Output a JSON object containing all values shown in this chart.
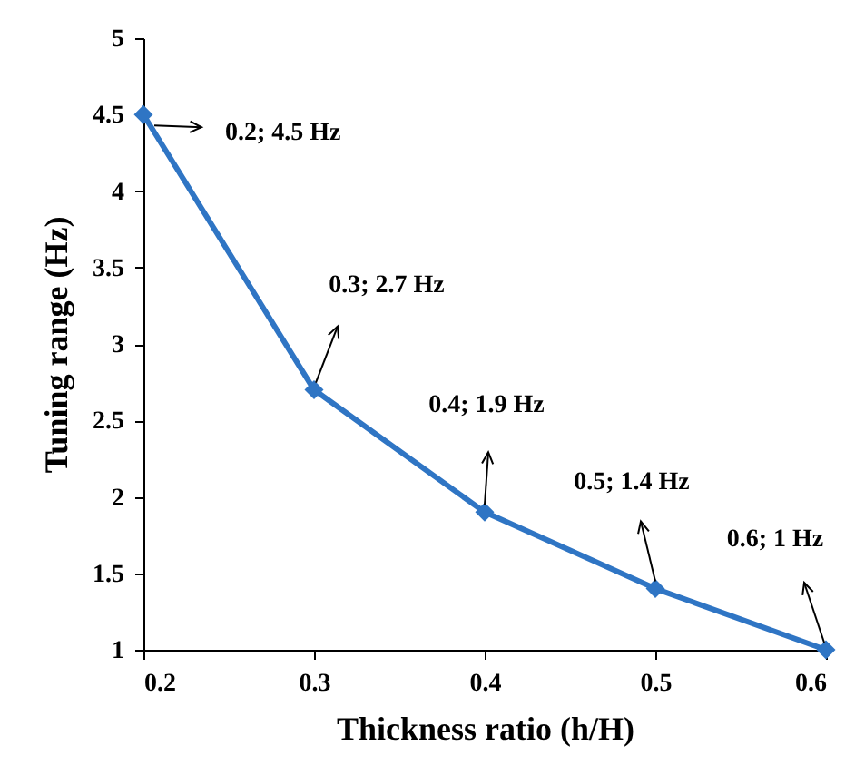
{
  "chart_data": {
    "type": "line",
    "xlabel": "Thickness ratio (h/H)",
    "ylabel": "Tuning range (Hz)",
    "x": [
      0.2,
      0.3,
      0.4,
      0.5,
      0.6
    ],
    "series": [
      {
        "color": "#2f75c4",
        "values": [
          4.5,
          2.7,
          1.9,
          1.4,
          1
        ]
      }
    ],
    "xlim": [
      0.2,
      0.6
    ],
    "xticks": [
      0.2,
      0.3,
      0.4,
      0.5,
      0.6
    ],
    "ylim": [
      1,
      5
    ],
    "yticks": [
      1,
      1.5,
      2,
      2.5,
      3,
      3.5,
      4,
      4.5,
      5
    ],
    "marker": "diamond",
    "line_style": "solid",
    "grid": false,
    "annotations": [
      {
        "text": "0.2; 4.5 Hz",
        "x": 0.2,
        "y": 4.5
      },
      {
        "text": "0.3; 2.7 Hz",
        "x": 0.3,
        "y": 2.7
      },
      {
        "text": "0.4; 1.9 Hz",
        "x": 0.4,
        "y": 1.9
      },
      {
        "text": "0.5; 1.4 Hz",
        "x": 0.5,
        "y": 1.4
      },
      {
        "text": "0.6; 1 Hz",
        "x": 0.6,
        "y": 1
      }
    ]
  }
}
